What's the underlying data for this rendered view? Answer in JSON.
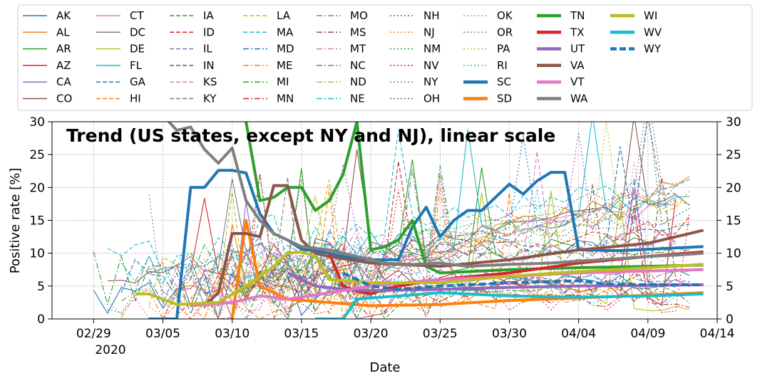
{
  "chart_data": {
    "type": "line",
    "title": "Trend (US states, except NY and NJ), linear scale",
    "xlabel": "Date",
    "ylabel": "Positive rate [%]",
    "year_label": "2020",
    "x_ticks": [
      "02/29",
      "03/05",
      "03/10",
      "03/15",
      "03/20",
      "03/25",
      "03/30",
      "04/04",
      "04/09",
      "04/14"
    ],
    "y_ticks": [
      "0",
      "5",
      "10",
      "15",
      "20",
      "25",
      "30"
    ],
    "xlim": [
      "2020-02-26",
      "2020-04-14"
    ],
    "ylim": [
      0,
      30
    ],
    "grid": true,
    "legend_position": "top",
    "highlighted_series": [
      {
        "name": "SC",
        "color": "#1f77b4",
        "x": [
          "2020-03-04",
          "2020-03-05",
          "2020-03-06",
          "2020-03-07",
          "2020-03-08",
          "2020-03-09",
          "2020-03-10",
          "2020-03-11",
          "2020-03-12",
          "2020-03-13",
          "2020-03-14",
          "2020-03-15",
          "2020-03-16",
          "2020-03-17",
          "2020-03-18",
          "2020-03-19",
          "2020-03-20",
          "2020-03-21",
          "2020-03-22",
          "2020-03-23",
          "2020-03-24",
          "2020-03-25",
          "2020-03-26",
          "2020-03-27",
          "2020-03-28",
          "2020-03-29",
          "2020-03-30",
          "2020-03-31",
          "2020-04-01",
          "2020-04-02",
          "2020-04-03",
          "2020-04-04",
          "2020-04-05",
          "2020-04-06",
          "2020-04-07",
          "2020-04-08",
          "2020-04-09",
          "2020-04-10",
          "2020-04-11",
          "2020-04-12",
          "2020-04-13"
        ],
        "values": [
          0,
          0,
          0,
          20,
          20,
          22.6,
          22.6,
          22.2,
          16,
          13,
          12,
          10.6,
          10.4,
          10,
          9.5,
          9.2,
          9,
          9,
          9,
          14,
          17,
          12.5,
          15,
          16.5,
          16.5,
          18.5,
          20.5,
          19,
          21,
          22.3,
          22.3,
          10.5,
          10.5,
          10.4,
          10.4,
          10.5,
          10.6,
          10.7,
          10.8,
          10.9,
          11
        ]
      },
      {
        "name": "SD",
        "color": "#ff7f0e",
        "x": [
          "2020-03-10",
          "2020-03-11",
          "2020-03-12",
          "2020-03-13",
          "2020-03-14",
          "2020-03-17",
          "2020-03-20",
          "2020-03-25",
          "2020-03-30",
          "2020-04-04",
          "2020-04-09",
          "2020-04-13"
        ],
        "values": [
          0,
          15,
          5,
          4,
          3,
          2.5,
          2,
          2.2,
          2.8,
          3.2,
          3.6,
          4
        ]
      },
      {
        "name": "TN",
        "color": "#2ca02c",
        "x": [
          "2020-03-11",
          "2020-03-12",
          "2020-03-13",
          "2020-03-14",
          "2020-03-15",
          "2020-03-16",
          "2020-03-17",
          "2020-03-18",
          "2020-03-19",
          "2020-03-20",
          "2020-03-21",
          "2020-03-22",
          "2020-03-23",
          "2020-03-24",
          "2020-03-25",
          "2020-03-30",
          "2020-04-04",
          "2020-04-09",
          "2020-04-13"
        ],
        "values": [
          30,
          18,
          18.5,
          20,
          20,
          16.5,
          18,
          22,
          30,
          10.5,
          11,
          12,
          15,
          8,
          7,
          7.5,
          7.8,
          8,
          8.2
        ]
      },
      {
        "name": "TX",
        "color": "#d62728",
        "x": [
          "2020-03-17",
          "2020-03-18",
          "2020-03-19",
          "2020-03-20",
          "2020-03-21",
          "2020-03-22",
          "2020-03-25",
          "2020-03-30",
          "2020-04-04",
          "2020-04-09",
          "2020-04-13"
        ],
        "values": [
          10,
          5,
          4.2,
          3.8,
          4.5,
          5,
          6,
          7,
          8.5,
          9.5,
          10.2
        ]
      },
      {
        "name": "UT",
        "color": "#9467bd",
        "x": [
          "2020-03-14",
          "2020-03-15",
          "2020-03-16",
          "2020-03-18",
          "2020-03-20",
          "2020-03-25",
          "2020-03-30",
          "2020-04-04",
          "2020-04-09",
          "2020-04-13"
        ],
        "values": [
          7,
          6,
          5,
          4.5,
          4.3,
          4.5,
          4.8,
          5,
          5.1,
          5.2
        ]
      },
      {
        "name": "VA",
        "color": "#8c564b",
        "x": [
          "2020-03-08",
          "2020-03-09",
          "2020-03-10",
          "2020-03-11",
          "2020-03-12",
          "2020-03-13",
          "2020-03-14",
          "2020-03-15",
          "2020-03-16",
          "2020-03-17",
          "2020-03-20",
          "2020-03-25",
          "2020-03-30",
          "2020-04-04",
          "2020-04-09",
          "2020-04-13"
        ],
        "values": [
          2,
          4,
          13,
          13,
          12.5,
          20.3,
          20.3,
          12,
          10,
          9.5,
          8.5,
          8,
          9,
          10.5,
          11.5,
          13.5
        ]
      },
      {
        "name": "VT",
        "color": "#e377c2",
        "x": [
          "2020-03-07",
          "2020-03-10",
          "2020-03-12",
          "2020-03-14",
          "2020-03-17",
          "2020-03-20",
          "2020-03-25",
          "2020-03-30",
          "2020-04-04",
          "2020-04-09",
          "2020-04-13"
        ],
        "values": [
          2,
          2.5,
          3.5,
          3,
          4,
          5,
          6,
          6.5,
          7,
          7.3,
          7.5
        ]
      },
      {
        "name": "WA",
        "color": "#7f7f7f",
        "x": [
          "2020-03-04",
          "2020-03-05",
          "2020-03-06",
          "2020-03-07",
          "2020-03-08",
          "2020-03-09",
          "2020-03-10",
          "2020-03-11",
          "2020-03-12",
          "2020-03-13",
          "2020-03-15",
          "2020-03-17",
          "2020-03-19",
          "2020-03-21",
          "2020-03-23",
          "2020-03-25",
          "2020-03-27",
          "2020-03-30",
          "2020-04-02",
          "2020-04-04",
          "2020-04-07",
          "2020-04-09",
          "2020-04-11",
          "2020-04-13"
        ],
        "values": [
          31,
          31,
          28.7,
          29.2,
          25.8,
          23.7,
          26,
          18,
          15,
          13,
          11,
          10.5,
          9.5,
          8.5,
          8.3,
          8.5,
          8,
          8.3,
          8.5,
          8.8,
          9.2,
          9.5,
          9.7,
          10
        ]
      },
      {
        "name": "WI",
        "color": "#bcbd22",
        "x": [
          "2020-03-03",
          "2020-03-04",
          "2020-03-06",
          "2020-03-09",
          "2020-03-11",
          "2020-03-13",
          "2020-03-14",
          "2020-03-15",
          "2020-03-16",
          "2020-03-17",
          "2020-03-20",
          "2020-03-25",
          "2020-03-30",
          "2020-04-04",
          "2020-04-09",
          "2020-04-13"
        ],
        "values": [
          3.8,
          3.8,
          2.2,
          2.5,
          5,
          8,
          10,
          10.2,
          9.5,
          6,
          5.5,
          5.5,
          6.5,
          7.2,
          7.8,
          8.3
        ]
      },
      {
        "name": "WV",
        "color": "#17becf",
        "x": [
          "2020-03-16",
          "2020-03-18",
          "2020-03-19",
          "2020-03-20",
          "2020-03-22",
          "2020-03-25",
          "2020-03-30",
          "2020-04-04",
          "2020-04-09",
          "2020-04-13"
        ],
        "values": [
          0,
          0,
          3,
          3.2,
          3.5,
          4,
          3.5,
          3.3,
          3.5,
          3.8
        ]
      },
      {
        "name": "WY",
        "color": "#1f77b4",
        "dashed": true,
        "x": [
          "2020-03-18",
          "2020-03-20",
          "2020-03-22",
          "2020-03-25",
          "2020-03-30",
          "2020-04-04",
          "2020-04-06",
          "2020-04-09",
          "2020-04-13"
        ],
        "values": [
          7,
          5,
          4.5,
          5,
          5.5,
          5.8,
          5.3,
          5.2,
          5.2
        ]
      }
    ]
  },
  "legend": {
    "items": [
      {
        "name": "AK",
        "color": "#1f77b4",
        "style": "solid",
        "width": 1
      },
      {
        "name": "AL",
        "color": "#ff7f0e",
        "style": "solid",
        "width": 1
      },
      {
        "name": "AR",
        "color": "#2ca02c",
        "style": "solid",
        "width": 1
      },
      {
        "name": "AZ",
        "color": "#d62728",
        "style": "solid",
        "width": 1
      },
      {
        "name": "CA",
        "color": "#9467bd",
        "style": "solid",
        "width": 1
      },
      {
        "name": "CO",
        "color": "#8c564b",
        "style": "solid",
        "width": 1
      },
      {
        "name": "CT",
        "color": "#e377c2",
        "style": "solid",
        "width": 1
      },
      {
        "name": "DC",
        "color": "#7f7f7f",
        "style": "solid",
        "width": 1
      },
      {
        "name": "DE",
        "color": "#bcbd22",
        "style": "solid",
        "width": 1
      },
      {
        "name": "FL",
        "color": "#17becf",
        "style": "solid",
        "width": 1
      },
      {
        "name": "GA",
        "color": "#1f77b4",
        "style": "dashed",
        "width": 1
      },
      {
        "name": "HI",
        "color": "#ff7f0e",
        "style": "dashed",
        "width": 1
      },
      {
        "name": "IA",
        "color": "#2ca02c",
        "style": "dashed",
        "width": 1
      },
      {
        "name": "ID",
        "color": "#d62728",
        "style": "dashed",
        "width": 1
      },
      {
        "name": "IL",
        "color": "#9467bd",
        "style": "dashed",
        "width": 1
      },
      {
        "name": "IN",
        "color": "#8c564b",
        "style": "dashed",
        "width": 1
      },
      {
        "name": "KS",
        "color": "#e377c2",
        "style": "dashed",
        "width": 1
      },
      {
        "name": "KY",
        "color": "#7f7f7f",
        "style": "dashed",
        "width": 1
      },
      {
        "name": "LA",
        "color": "#bcbd22",
        "style": "dashed",
        "width": 1
      },
      {
        "name": "MA",
        "color": "#17becf",
        "style": "dashed",
        "width": 1
      },
      {
        "name": "MD",
        "color": "#1f77b4",
        "style": "dashdot",
        "width": 1
      },
      {
        "name": "ME",
        "color": "#ff7f0e",
        "style": "dashdot",
        "width": 1
      },
      {
        "name": "MI",
        "color": "#2ca02c",
        "style": "dashdot",
        "width": 1
      },
      {
        "name": "MN",
        "color": "#d62728",
        "style": "dashdot",
        "width": 1
      },
      {
        "name": "MO",
        "color": "#9467bd",
        "style": "dashdot",
        "width": 1
      },
      {
        "name": "MS",
        "color": "#8c564b",
        "style": "dashdot",
        "width": 1
      },
      {
        "name": "MT",
        "color": "#e377c2",
        "style": "dashdot",
        "width": 1
      },
      {
        "name": "NC",
        "color": "#7f7f7f",
        "style": "dashdot",
        "width": 1
      },
      {
        "name": "ND",
        "color": "#bcbd22",
        "style": "dashdot",
        "width": 1
      },
      {
        "name": "NE",
        "color": "#17becf",
        "style": "dashdot",
        "width": 1
      },
      {
        "name": "NH",
        "color": "#1f77b4",
        "style": "dotted",
        "width": 1
      },
      {
        "name": "NJ",
        "color": "#ff7f0e",
        "style": "dotted",
        "width": 1
      },
      {
        "name": "NM",
        "color": "#2ca02c",
        "style": "dotted",
        "width": 1
      },
      {
        "name": "NV",
        "color": "#d62728",
        "style": "dotted",
        "width": 1
      },
      {
        "name": "NY",
        "color": "#9467bd",
        "style": "dotted",
        "width": 1
      },
      {
        "name": "OH",
        "color": "#8c564b",
        "style": "dotted",
        "width": 1
      },
      {
        "name": "OK",
        "color": "#e377c2",
        "style": "dotted",
        "width": 1
      },
      {
        "name": "OR",
        "color": "#7f7f7f",
        "style": "dotted",
        "width": 1
      },
      {
        "name": "PA",
        "color": "#bcbd22",
        "style": "dotted",
        "width": 1
      },
      {
        "name": "RI",
        "color": "#17becf",
        "style": "dotted",
        "width": 1
      },
      {
        "name": "SC",
        "color": "#1f77b4",
        "style": "solid",
        "width": 4
      },
      {
        "name": "SD",
        "color": "#ff7f0e",
        "style": "solid",
        "width": 4
      },
      {
        "name": "TN",
        "color": "#2ca02c",
        "style": "solid",
        "width": 4
      },
      {
        "name": "TX",
        "color": "#d62728",
        "style": "solid",
        "width": 4
      },
      {
        "name": "UT",
        "color": "#9467bd",
        "style": "solid",
        "width": 4
      },
      {
        "name": "VA",
        "color": "#8c564b",
        "style": "solid",
        "width": 4
      },
      {
        "name": "VT",
        "color": "#e377c2",
        "style": "solid",
        "width": 4
      },
      {
        "name": "WA",
        "color": "#7f7f7f",
        "style": "solid",
        "width": 4
      },
      {
        "name": "WI",
        "color": "#bcbd22",
        "style": "solid",
        "width": 4
      },
      {
        "name": "WV",
        "color": "#17becf",
        "style": "solid",
        "width": 4
      },
      {
        "name": "WY",
        "color": "#1f77b4",
        "style": "dashed",
        "width": 4
      }
    ]
  }
}
